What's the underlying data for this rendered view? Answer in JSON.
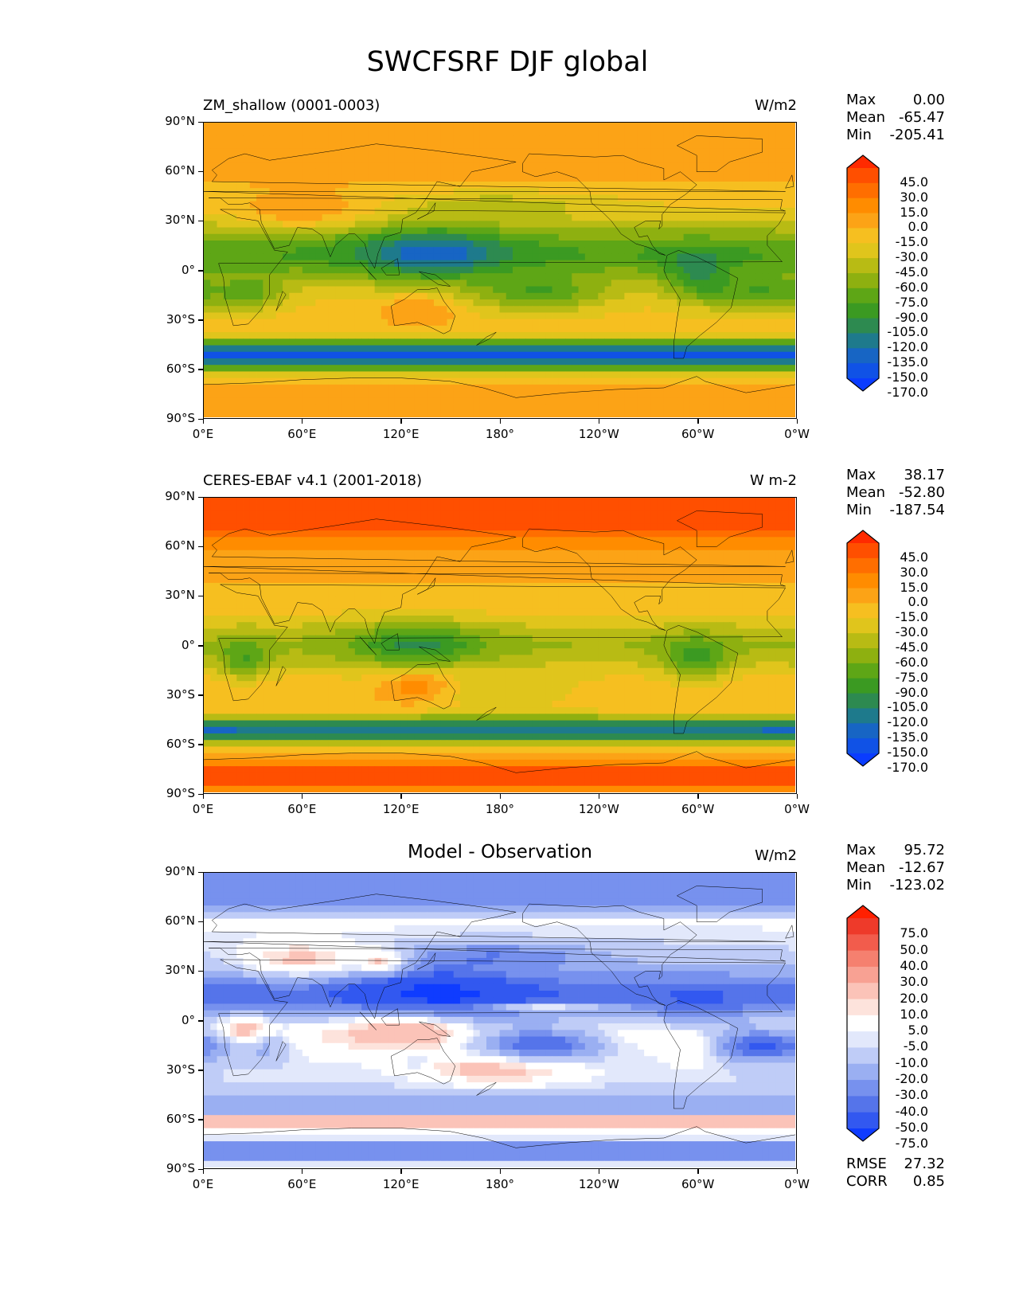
{
  "figure_title": "SWCFSRF DJF global",
  "x_ticks": [
    "0°E",
    "60°E",
    "120°E",
    "180°",
    "120°W",
    "60°W",
    "0°W"
  ],
  "y_ticks": [
    "90°N",
    "60°N",
    "30°N",
    "0°",
    "30°S",
    "60°S",
    "90°S"
  ],
  "chart_data": [
    {
      "type": "heatmap",
      "title_left": "ZM_shallow (0001-0003)",
      "units": "W/m2",
      "stats": [
        {
          "label": "Max",
          "value": "0.00"
        },
        {
          "label": "Mean",
          "value": "-65.47"
        },
        {
          "label": "Min",
          "value": "-205.41"
        }
      ],
      "xlim": [
        0,
        360
      ],
      "ylim": [
        -90,
        90
      ],
      "colorbar": {
        "levels": [
          "45.0",
          "30.0",
          "15.0",
          "0.0",
          "-15.0",
          "-30.0",
          "-45.0",
          "-60.0",
          "-75.0",
          "-90.0",
          "-105.0",
          "-120.0",
          "-135.0",
          "-150.0",
          "-170.0"
        ],
        "colors": [
          "#ff2a00",
          "#ff4f00",
          "#ff6e00",
          "#ff8c00",
          "#fca316",
          "#f6bf20",
          "#e0c51c",
          "#b8bb14",
          "#8eb010",
          "#5ea616",
          "#3b9a22",
          "#2d8a50",
          "#1e7a8c",
          "#1765c4",
          "#1052e6",
          "#0a3cff"
        ]
      }
    },
    {
      "type": "heatmap",
      "title_left": "CERES-EBAF v4.1 (2001-2018)",
      "units": "W m-2",
      "stats": [
        {
          "label": "Max",
          "value": "38.17"
        },
        {
          "label": "Mean",
          "value": "-52.80"
        },
        {
          "label": "Min",
          "value": "-187.54"
        }
      ],
      "xlim": [
        0,
        360
      ],
      "ylim": [
        -90,
        90
      ],
      "colorbar": {
        "levels": [
          "45.0",
          "30.0",
          "15.0",
          "0.0",
          "-15.0",
          "-30.0",
          "-45.0",
          "-60.0",
          "-75.0",
          "-90.0",
          "-105.0",
          "-120.0",
          "-135.0",
          "-150.0",
          "-170.0"
        ],
        "colors": [
          "#ff2a00",
          "#ff4f00",
          "#ff6e00",
          "#ff8c00",
          "#fca316",
          "#f6bf20",
          "#e0c51c",
          "#b8bb14",
          "#8eb010",
          "#5ea616",
          "#3b9a22",
          "#2d8a50",
          "#1e7a8c",
          "#1765c4",
          "#1052e6",
          "#0a3cff"
        ]
      }
    },
    {
      "type": "heatmap",
      "title_center": "Model - Observation",
      "units": "W/m2",
      "stats": [
        {
          "label": "Max",
          "value": "95.72"
        },
        {
          "label": "Mean",
          "value": "-12.67"
        },
        {
          "label": "Min",
          "value": "-123.02"
        }
      ],
      "extra_stats": [
        {
          "label": "RMSE",
          "value": "27.32"
        },
        {
          "label": "CORR",
          "value": "0.85"
        }
      ],
      "xlim": [
        0,
        360
      ],
      "ylim": [
        -90,
        90
      ],
      "colorbar": {
        "levels": [
          "75.0",
          "50.0",
          "40.0",
          "30.0",
          "20.0",
          "10.0",
          "5.0",
          "-5.0",
          "-10.0",
          "-20.0",
          "-30.0",
          "-40.0",
          "-50.0",
          "-75.0"
        ],
        "colors": [
          "#ff2000",
          "#ee3a2a",
          "#f25c4c",
          "#f5806f",
          "#f8a193",
          "#fbc3b8",
          "#fde3dc",
          "#ffffff",
          "#e2e8fb",
          "#bfccf7",
          "#9aaff2",
          "#7791ee",
          "#5574ea",
          "#3258f0",
          "#0f3cff"
        ]
      }
    }
  ]
}
